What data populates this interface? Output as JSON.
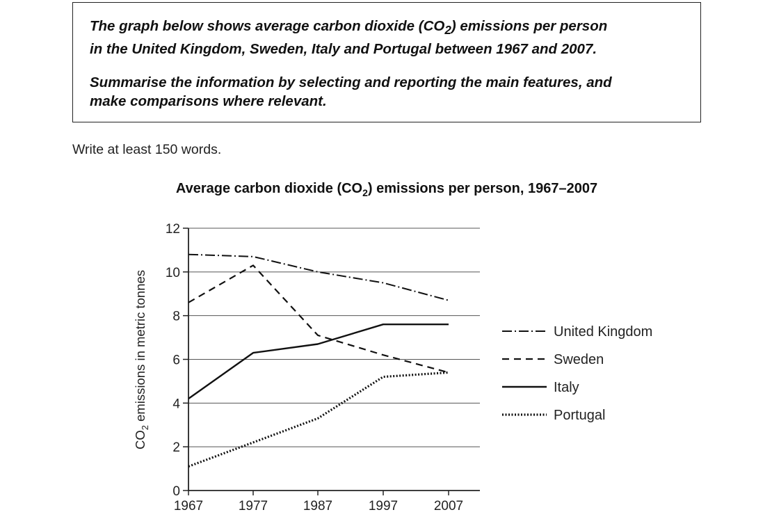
{
  "task": {
    "para1_line1": "The graph below shows average carbon dioxide (CO",
    "para1_sub": "2",
    "para1_line1_end": ") emissions per person",
    "para1_line2": "in the United Kingdom, Sweden, Italy and Portugal between 1967 and 2007.",
    "para2_line1": "Summarise the information by selecting and reporting the main features, and",
    "para2_line2": "make comparisons where relevant."
  },
  "min_words": "Write at least 150 words.",
  "chart_data": {
    "type": "line",
    "title_pre": "Average carbon dioxide (CO",
    "title_sub": "2",
    "title_post": ") emissions per person, 1967–2007",
    "ylabel_pre": "CO",
    "ylabel_sub": "2",
    "ylabel_post": " emissions in metric tonnes",
    "x": [
      "1967",
      "1977",
      "1987",
      "1997",
      "2007"
    ],
    "ylim": [
      0,
      12
    ],
    "yticks": [
      "0",
      "2",
      "4",
      "6",
      "8",
      "10",
      "12"
    ],
    "grid": true,
    "legend_position": "right",
    "series": [
      {
        "name": "United Kingdom",
        "values": [
          10.8,
          10.7,
          10.0,
          9.5,
          8.7
        ],
        "dash": "dash-dot"
      },
      {
        "name": "Sweden",
        "values": [
          8.6,
          10.3,
          7.1,
          6.2,
          5.4
        ],
        "dash": "dashed"
      },
      {
        "name": "Italy",
        "values": [
          4.2,
          6.3,
          6.7,
          7.6,
          7.6
        ],
        "dash": "solid"
      },
      {
        "name": "Portugal",
        "values": [
          1.1,
          2.2,
          3.3,
          5.2,
          5.4
        ],
        "dash": "dotted"
      }
    ]
  }
}
